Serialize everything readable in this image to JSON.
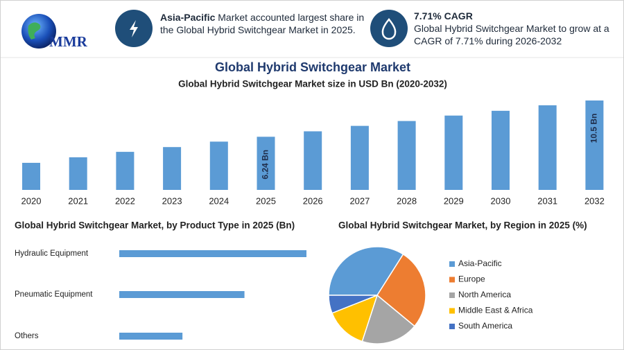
{
  "header": {
    "logo": "MMR",
    "highlight_1": {
      "bold": "Asia-Pacific",
      "text": "Market accounted largest share in the Global Hybrid Switchgear Market in 2025."
    },
    "highlight_2": {
      "bold": "7.71% CAGR",
      "text": "Global Hybrid Switchgear Market to grow at a CAGR of 7.71% during 2026-2032"
    }
  },
  "title": "Global Hybrid Switchgear Market",
  "chart_data": [
    {
      "type": "bar",
      "title": "Global Hybrid Switchgear Market size in USD Bn (2020-2032)",
      "categories": [
        "2020",
        "2021",
        "2022",
        "2023",
        "2024",
        "2025",
        "2026",
        "2027",
        "2028",
        "2029",
        "2030",
        "2031",
        "2032"
      ],
      "values": [
        3.18,
        3.83,
        4.47,
        5.03,
        5.67,
        6.24,
        6.88,
        7.52,
        8.09,
        8.73,
        9.29,
        9.94,
        10.5
      ],
      "value_labels": [
        null,
        null,
        null,
        null,
        null,
        "6.24 Bn",
        null,
        null,
        null,
        null,
        null,
        null,
        "10.5 Bn"
      ],
      "color": "#5b9bd5"
    },
    {
      "type": "hbar",
      "title": "Global Hybrid Switchgear Market, by Product Type in 2025 (Bn)",
      "categories": [
        "Hydraulic Equipment",
        "Pneumatic Equipment",
        "Others"
      ],
      "values": [
        3.11,
        2.08,
        1.05
      ],
      "color": "#5b9bd5"
    },
    {
      "type": "pie",
      "title": "Global Hybrid Switchgear Market, by Region in 2025 (%)",
      "categories": [
        "Asia-Pacific",
        "Europe",
        "North America",
        "Middle East & Africa",
        "South America"
      ],
      "values": [
        34,
        27,
        19,
        14,
        6
      ],
      "colors": [
        "#5b9bd5",
        "#ed7d31",
        "#a5a5a5",
        "#ffc000",
        "#4472c4"
      ]
    }
  ]
}
